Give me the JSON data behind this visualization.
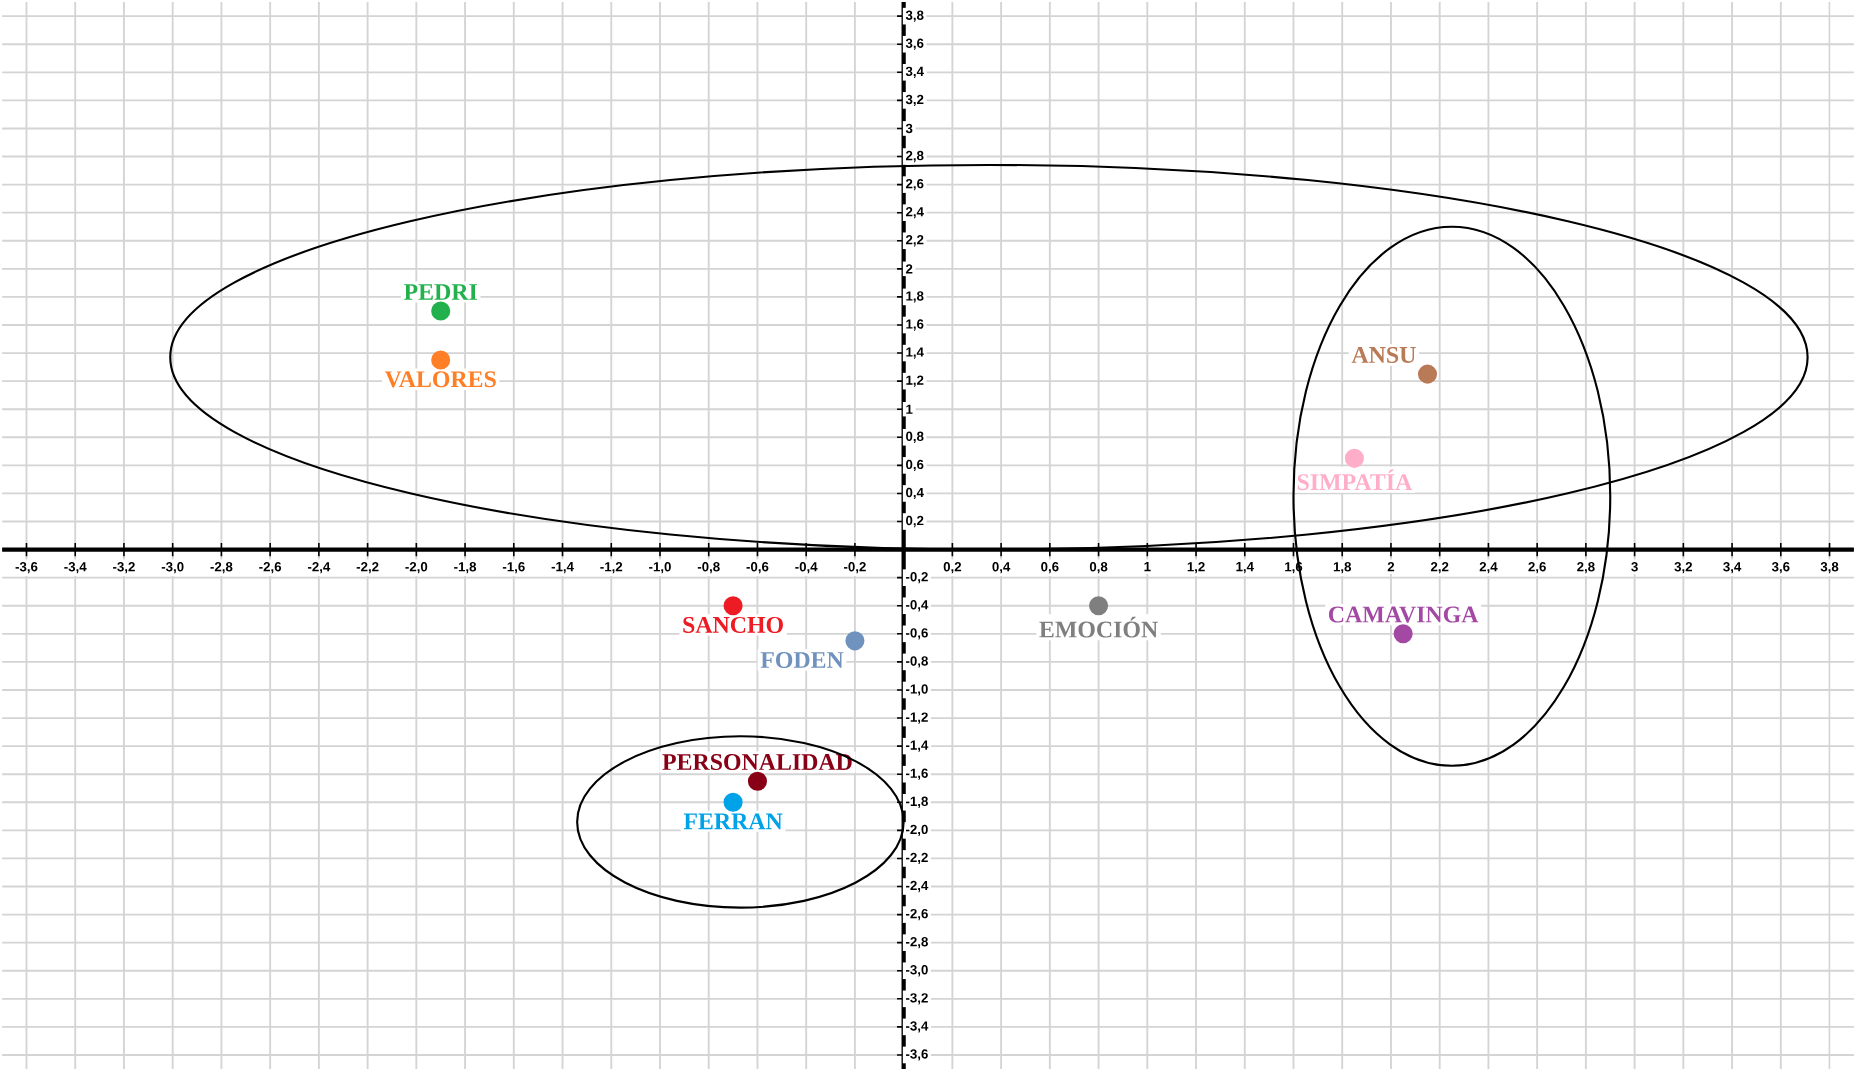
{
  "chart_data": {
    "type": "scatter",
    "grid": true,
    "marker": "circle",
    "xlim": [
      -3.7,
      3.9
    ],
    "ylim": [
      -3.7,
      3.9
    ],
    "xticks": [
      {
        "value": -3.6,
        "label": "-3,6"
      },
      {
        "value": -3.4,
        "label": "-3,4"
      },
      {
        "value": -3.2,
        "label": "-3,2"
      },
      {
        "value": -3.0,
        "label": "-3,0"
      },
      {
        "value": -2.8,
        "label": "-2,8"
      },
      {
        "value": -2.6,
        "label": "-2,6"
      },
      {
        "value": -2.4,
        "label": "-2,4"
      },
      {
        "value": -2.2,
        "label": "-2,2"
      },
      {
        "value": -2.0,
        "label": "-2,0"
      },
      {
        "value": -1.8,
        "label": "-1,8"
      },
      {
        "value": -1.6,
        "label": "-1,6"
      },
      {
        "value": -1.4,
        "label": "-1,4"
      },
      {
        "value": -1.2,
        "label": "-1,2"
      },
      {
        "value": -1.0,
        "label": "-1,0"
      },
      {
        "value": -0.8,
        "label": "-0,8"
      },
      {
        "value": -0.6,
        "label": "-0,6"
      },
      {
        "value": -0.4,
        "label": "-0,4"
      },
      {
        "value": -0.2,
        "label": "-0,2"
      },
      {
        "value": 0.2,
        "label": "0,2"
      },
      {
        "value": 0.4,
        "label": "0,4"
      },
      {
        "value": 0.6,
        "label": "0,6"
      },
      {
        "value": 0.8,
        "label": "0,8"
      },
      1,
      {
        "value": 1.2,
        "label": "1,2"
      },
      {
        "value": 1.4,
        "label": "1,4"
      },
      {
        "value": 1.6,
        "label": "1,6"
      },
      {
        "value": 1.8,
        "label": "1,8"
      },
      2,
      {
        "value": 2.2,
        "label": "2,2"
      },
      {
        "value": 2.4,
        "label": "2,4"
      },
      {
        "value": 2.6,
        "label": "2,6"
      },
      {
        "value": 2.8,
        "label": "2,8"
      },
      3,
      {
        "value": 3.2,
        "label": "3,2"
      },
      {
        "value": 3.4,
        "label": "3,4"
      },
      {
        "value": 3.6,
        "label": "3,6"
      },
      {
        "value": 3.8,
        "label": "3,8"
      }
    ],
    "yticks": [
      {
        "value": -3.6,
        "label": "-3,6"
      },
      {
        "value": -3.4,
        "label": "-3,4"
      },
      {
        "value": -3.2,
        "label": "-3,2"
      },
      {
        "value": -3.0,
        "label": "-3,0"
      },
      {
        "value": -2.8,
        "label": "-2,8"
      },
      {
        "value": -2.6,
        "label": "-2,6"
      },
      {
        "value": -2.4,
        "label": "-2,4"
      },
      {
        "value": -2.2,
        "label": "-2,2"
      },
      {
        "value": -2.0,
        "label": "-2,0"
      },
      {
        "value": -1.8,
        "label": "-1,8"
      },
      {
        "value": -1.6,
        "label": "-1,6"
      },
      {
        "value": -1.4,
        "label": "-1,4"
      },
      {
        "value": -1.2,
        "label": "-1,2"
      },
      {
        "value": -1.0,
        "label": "-1,0"
      },
      {
        "value": -0.8,
        "label": "-0,8"
      },
      {
        "value": -0.6,
        "label": "-0,6"
      },
      {
        "value": -0.4,
        "label": "-0,4"
      },
      {
        "value": -0.2,
        "label": "-0,2"
      },
      {
        "value": 0.2,
        "label": "0,2"
      },
      {
        "value": 0.4,
        "label": "0,4"
      },
      {
        "value": 0.6,
        "label": "0,6"
      },
      {
        "value": 0.8,
        "label": "0,8"
      },
      1,
      {
        "value": 1.2,
        "label": "1,2"
      },
      {
        "value": 1.4,
        "label": "1,4"
      },
      {
        "value": 1.6,
        "label": "1,6"
      },
      {
        "value": 1.8,
        "label": "1,8"
      },
      2,
      {
        "value": 2.2,
        "label": "2,2"
      },
      {
        "value": 2.4,
        "label": "2,4"
      },
      {
        "value": 2.6,
        "label": "2,6"
      },
      {
        "value": 2.8,
        "label": "2,8"
      },
      3,
      {
        "value": 3.2,
        "label": "3,2"
      },
      {
        "value": 3.4,
        "label": "3,4"
      },
      {
        "value": 3.6,
        "label": "3,6"
      },
      {
        "value": 3.8,
        "label": "3,8"
      }
    ],
    "series": [
      {
        "name": "PEDRI",
        "color": "#22b14c",
        "x": [
          -1.9
        ],
        "values": [
          1.7
        ]
      },
      {
        "name": "VALORES",
        "color": "#ff7f27",
        "x": [
          -1.9
        ],
        "values": [
          1.35
        ]
      },
      {
        "name": "ANSU",
        "color": "#b97a57",
        "x": [
          2.15
        ],
        "values": [
          1.25
        ]
      },
      {
        "name": "SIMPATÍA",
        "color": "#ffaec9",
        "x": [
          1.85
        ],
        "values": [
          0.65
        ]
      },
      {
        "name": "CAMAVINGA",
        "color": "#a349a4",
        "x": [
          2.05
        ],
        "values": [
          -0.6
        ]
      },
      {
        "name": "EMOCIÓN",
        "color": "#7f7f7f",
        "x": [
          0.8
        ],
        "values": [
          -0.4
        ]
      },
      {
        "name": "SANCHO",
        "color": "#ed1c24",
        "x": [
          -0.7
        ],
        "values": [
          -0.4
        ]
      },
      {
        "name": "FODEN",
        "color": "#7092be",
        "x": [
          -0.2
        ],
        "values": [
          -0.65
        ]
      },
      {
        "name": "PERSONALIDAD",
        "color": "#880015",
        "x": [
          -0.6
        ],
        "values": [
          -1.65
        ]
      },
      {
        "name": "FERRAN",
        "color": "#00a2e8",
        "x": [
          -0.7
        ],
        "values": [
          -1.8
        ]
      }
    ]
  }
}
